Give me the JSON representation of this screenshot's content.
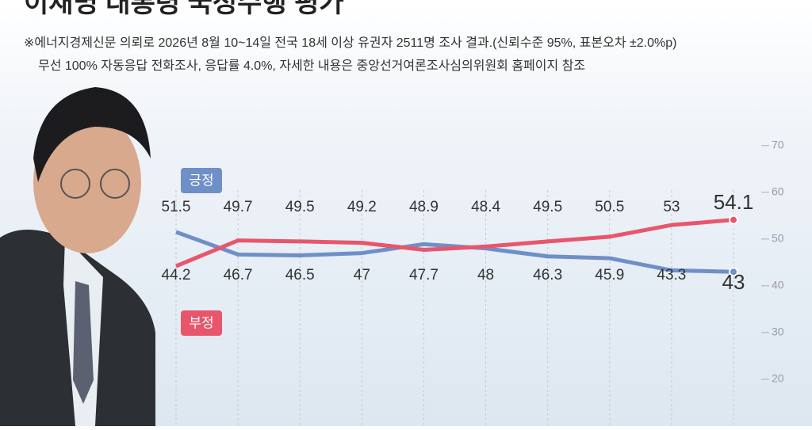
{
  "chart_data": {
    "type": "line",
    "title": "이재명 대통령 국정수행 평가",
    "notes": [
      "※에너지경제신문 의뢰로 2026년 8월 10~14일 전국 18세 이상 유권자 2511명 조사 결과.(신뢰수준 95%, 표본오차 ±2.0%p)",
      "무선 100% 자동응답 전화조사, 응답률 4.0%, 자세한 내용은 중앙선거여론조사심의위원회 홈페이지 참조"
    ],
    "categories": [
      null,
      null,
      null,
      null,
      null,
      null,
      null,
      null,
      null,
      null
    ],
    "series": [
      {
        "name": "긍정",
        "color": "#6f8fc8",
        "values": [
          51.5,
          46.7,
          46.5,
          47.0,
          48.9,
          48.0,
          46.3,
          45.9,
          43.3,
          43.0
        ]
      },
      {
        "name": "부정",
        "color": "#e8566c",
        "values": [
          44.2,
          49.7,
          49.5,
          49.2,
          47.7,
          48.4,
          49.5,
          50.5,
          53.0,
          54.1
        ]
      }
    ],
    "ylim": [
      10,
      72
    ],
    "yticks": [
      20,
      30,
      40,
      50,
      60,
      70
    ],
    "grid": true
  }
}
